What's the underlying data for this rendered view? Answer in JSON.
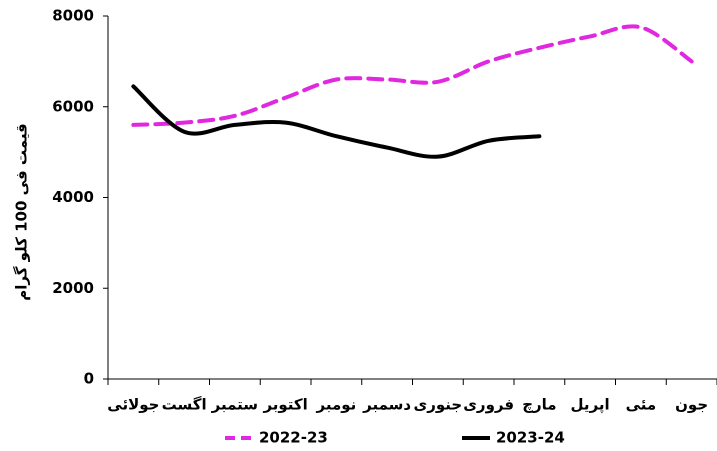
{
  "chart_data": {
    "type": "line",
    "y_label": "قیمت فی 100 کلو گرام",
    "categories": [
      "جولائی",
      "اگست",
      "ستمبر",
      "اکتوبر",
      "نومبر",
      "دسمبر",
      "جنوری",
      "فروری",
      "مارچ",
      "اپریل",
      "مئی",
      "جون"
    ],
    "series": [
      {
        "name": "2022-23",
        "color": "#e028e0",
        "dash": true,
        "values": [
          5600,
          5650,
          5800,
          6200,
          6600,
          6600,
          6550,
          7000,
          7300,
          7550,
          7750,
          7000
        ]
      },
      {
        "name": "2023-24",
        "color": "#000000",
        "dash": false,
        "values": [
          6450,
          5450,
          5600,
          5650,
          5350,
          5100,
          4900,
          5250,
          5350,
          null,
          null,
          null
        ]
      }
    ],
    "ylim": [
      0,
      8000
    ],
    "yticks": [
      0,
      2000,
      4000,
      6000,
      8000
    ],
    "grid": false
  }
}
